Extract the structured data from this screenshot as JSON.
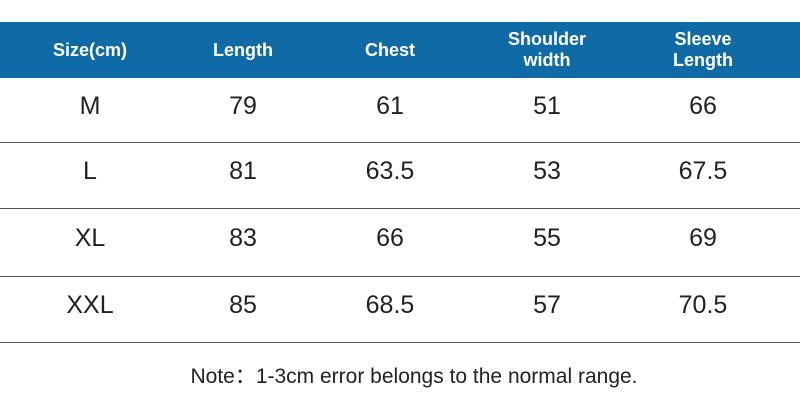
{
  "table": {
    "header": [
      "Size(cm)",
      "Length",
      "Chest",
      "Shoulder width",
      "Sleeve Length"
    ],
    "rows": [
      [
        "M",
        "79",
        "61",
        "51",
        "66"
      ],
      [
        "L",
        "81",
        "63.5",
        "53",
        "67.5"
      ],
      [
        "XL",
        "83",
        "66",
        "55",
        "69"
      ],
      [
        "XXL",
        "85",
        "68.5",
        "57",
        "70.5"
      ]
    ]
  },
  "note": "Note：1-3cm error belongs to the normal range."
}
